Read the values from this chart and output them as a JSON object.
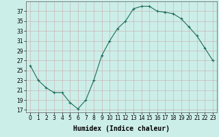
{
  "x": [
    0,
    1,
    2,
    3,
    4,
    5,
    6,
    7,
    8,
    9,
    10,
    11,
    12,
    13,
    14,
    15,
    16,
    17,
    18,
    19,
    20,
    21,
    22,
    23
  ],
  "y": [
    26,
    23,
    21.5,
    20.5,
    20.5,
    18.5,
    17.2,
    19,
    23,
    28,
    31,
    33.5,
    35,
    37.5,
    38,
    38,
    37,
    36.8,
    36.5,
    35.5,
    33.8,
    32,
    29.5,
    27
  ],
  "line_color": "#1a6b5a",
  "marker": "+",
  "marker_size": 3,
  "marker_linewidth": 0.8,
  "background_color": "#cceee8",
  "grid_color": "#b0c8c4",
  "grid_color_major": "#c4d8d4",
  "xlabel": "Humidex (Indice chaleur)",
  "xlabel_fontsize": 7,
  "yticks": [
    17,
    19,
    21,
    23,
    25,
    27,
    29,
    31,
    33,
    35,
    37
  ],
  "ylim": [
    16.5,
    39
  ],
  "xlim": [
    -0.5,
    23.5
  ],
  "xticks": [
    0,
    1,
    2,
    3,
    4,
    5,
    6,
    7,
    8,
    9,
    10,
    11,
    12,
    13,
    14,
    15,
    16,
    17,
    18,
    19,
    20,
    21,
    22,
    23
  ],
  "tick_label_fontsize": 5.5,
  "line_width": 0.8
}
